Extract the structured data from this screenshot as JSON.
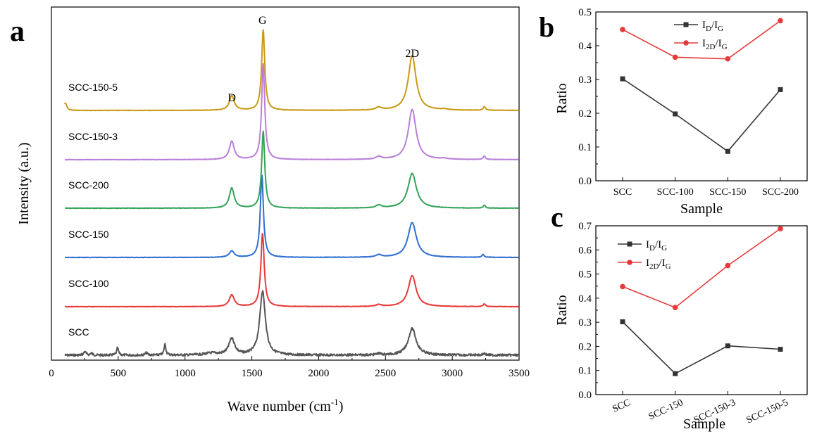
{
  "figure": {
    "panel_letters": [
      "a",
      "b",
      "c"
    ]
  },
  "chart_data": [
    {
      "id": "a",
      "type": "line",
      "title": "",
      "xlabel": "Wave number (cm",
      "xlabel_sup": "-1",
      "xlabel_close": ")",
      "ylabel": "Intensity (a.u.)",
      "xlim": [
        0,
        3500
      ],
      "xticks": [
        0,
        500,
        1000,
        1500,
        2000,
        2500,
        3000,
        3500
      ],
      "peak_labels": [
        {
          "text": "D",
          "x": 1350
        },
        {
          "text": "G",
          "x": 1580
        },
        {
          "text": "2D",
          "x": 2700
        }
      ],
      "series": [
        {
          "name": "SCC",
          "color": "#555555",
          "baseline": 0.0,
          "scale": 1.0,
          "xstart": 100,
          "noise": 1.6,
          "peaks": [
            [
              1350,
              26,
              0.18
            ],
            [
              1580,
              25,
              0.7
            ],
            [
              2700,
              35,
              0.29
            ],
            [
              3240,
              12,
              0.02
            ],
            [
              2450,
              20,
              0.015
            ]
          ],
          "extra_peaks": [
            [
              250,
              10,
              0.04
            ],
            [
              300,
              8,
              0.025
            ],
            [
              495,
              8,
              0.08
            ],
            [
              710,
              10,
              0.025
            ],
            [
              850,
              8,
              0.12
            ],
            [
              1200,
              60,
              0.02
            ]
          ]
        },
        {
          "name": "SCC-100",
          "color": "#e8393a",
          "baseline": 1.0,
          "scale": 1.0,
          "xstart": 100,
          "noise": 0.3,
          "peaks": [
            [
              1350,
              22,
              0.13
            ],
            [
              1580,
              15,
              0.8
            ],
            [
              2700,
              35,
              0.34
            ],
            [
              3240,
              10,
              0.03
            ],
            [
              2450,
              25,
              0.02
            ]
          ],
          "extra_peaks": []
        },
        {
          "name": "SCC-150",
          "color": "#2f6fd0",
          "baseline": 2.0,
          "scale": 1.0,
          "xstart": 100,
          "noise": 0.3,
          "peaks": [
            [
              1350,
              22,
              0.07
            ],
            [
              1575,
              14,
              0.9
            ],
            [
              2700,
              38,
              0.38
            ],
            [
              3230,
              10,
              0.03
            ],
            [
              2450,
              25,
              0.025
            ]
          ],
          "extra_peaks": []
        },
        {
          "name": "SCC-200",
          "color": "#35a35a",
          "baseline": 3.0,
          "scale": 1.0,
          "xstart": 100,
          "noise": 0.3,
          "peaks": [
            [
              1350,
              22,
              0.22
            ],
            [
              1585,
              14,
              0.84
            ],
            [
              2700,
              38,
              0.38
            ],
            [
              3240,
              10,
              0.03
            ],
            [
              2450,
              25,
              0.03
            ]
          ],
          "extra_peaks": []
        },
        {
          "name": "SCC-150-3",
          "color": "#b97fd9",
          "baseline": 4.0,
          "scale": 1.0,
          "xstart": 100,
          "noise": 0.3,
          "peaks": [
            [
              1350,
              22,
              0.2
            ],
            [
              1585,
              14,
              1.05
            ],
            [
              2700,
              35,
              0.55
            ],
            [
              3240,
              10,
              0.04
            ],
            [
              2450,
              25,
              0.03
            ],
            [
              2940,
              30,
              0.01
            ]
          ],
          "extra_peaks": []
        },
        {
          "name": "SCC-150-5",
          "color": "#c99a14",
          "baseline": 5.0,
          "scale": 1.0,
          "xstart": 100,
          "noise": 0.3,
          "peaks": [
            [
              1350,
              22,
              0.16
            ],
            [
              1585,
              14,
              0.88
            ],
            [
              2700,
              35,
              0.6
            ],
            [
              3240,
              10,
              0.04
            ],
            [
              2450,
              25,
              0.03
            ],
            [
              2940,
              30,
              0.01
            ]
          ],
          "extra_peaks": [
            [
              105,
              12,
              0.08
            ]
          ]
        }
      ]
    },
    {
      "id": "b",
      "type": "line",
      "title": "",
      "xlabel": "Sample",
      "ylabel": "Ratio",
      "categories": [
        "SCC",
        "SCC-100",
        "SCC-150",
        "SCC-200"
      ],
      "ylim": [
        0.0,
        0.5
      ],
      "yticks": [
        "0.0",
        "0.1",
        "0.2",
        "0.3",
        "0.4",
        "0.5"
      ],
      "legend_position": "top-center",
      "series": [
        {
          "name": "I_D/I_G",
          "label_main": "I",
          "label_sub1": "D",
          "label_slash": "/I",
          "label_sub2": "G",
          "color": "#333333",
          "marker": "square",
          "values": [
            0.302,
            0.198,
            0.087,
            0.27
          ]
        },
        {
          "name": "I_2D/I_G",
          "label_main": "I",
          "label_sub1": "2D",
          "label_slash": "/I",
          "label_sub2": "G",
          "color": "#e8393a",
          "marker": "circle",
          "values": [
            0.448,
            0.366,
            0.361,
            0.474
          ]
        }
      ]
    },
    {
      "id": "c",
      "type": "line",
      "title": "",
      "xlabel": "Sample",
      "ylabel": "Ratio",
      "categories": [
        "SCC",
        "SCC-150",
        "SCC-150-3",
        "SCC-150-5"
      ],
      "ylim": [
        0.0,
        0.7
      ],
      "yticks": [
        "0.0",
        "0.1",
        "0.2",
        "0.3",
        "0.4",
        "0.5",
        "0.6",
        "0.7"
      ],
      "legend_position": "top-left",
      "series": [
        {
          "name": "I_D/I_G",
          "label_main": "I",
          "label_sub1": "D",
          "label_slash": "/I",
          "label_sub2": "G",
          "color": "#333333",
          "marker": "square",
          "values": [
            0.302,
            0.087,
            0.202,
            0.188
          ]
        },
        {
          "name": "I_2D/I_G",
          "label_main": "I",
          "label_sub1": "2D",
          "label_slash": "/I",
          "label_sub2": "G",
          "color": "#e8393a",
          "marker": "circle",
          "values": [
            0.448,
            0.361,
            0.535,
            0.688
          ]
        }
      ]
    }
  ]
}
